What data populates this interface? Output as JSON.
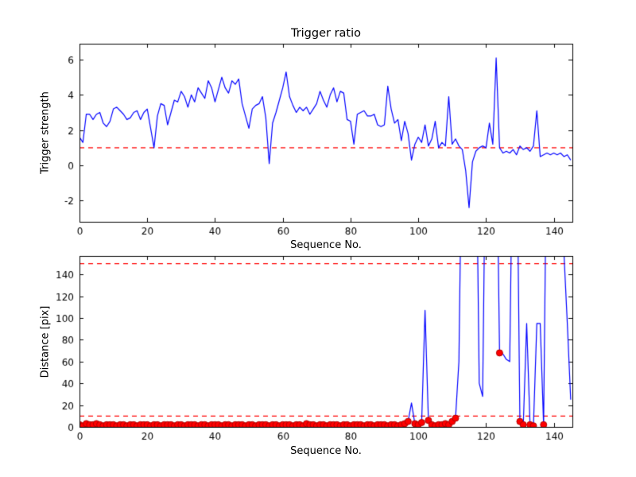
{
  "figure": {
    "background": "#ffffff",
    "line_blue": "#0000ff",
    "dashed_red": "#ff0000"
  },
  "chart_data": [
    {
      "type": "line",
      "title": "Trigger ratio",
      "xlabel": "Sequence No.",
      "ylabel": "Trigger strength",
      "xlim": [
        0,
        145.5
      ],
      "ylim": [
        -3.2,
        6.9
      ],
      "xticks": [
        0,
        20,
        40,
        60,
        80,
        100,
        120,
        140
      ],
      "yticks": [
        -2,
        0,
        2,
        4,
        6
      ],
      "grid": false,
      "legend": null,
      "line_color": "#0000ff",
      "threshold_color": "#ff0000",
      "threshold_lines": [
        1
      ],
      "x_start": 0,
      "x_step": 1,
      "values": [
        1.6,
        1.3,
        2.9,
        2.9,
        2.6,
        2.9,
        3.0,
        2.4,
        2.2,
        2.5,
        3.2,
        3.3,
        3.1,
        2.9,
        2.6,
        2.7,
        3.0,
        3.1,
        2.6,
        3.0,
        3.2,
        2.1,
        1.0,
        2.8,
        3.5,
        3.4,
        2.3,
        3.0,
        3.7,
        3.6,
        4.2,
        3.9,
        3.3,
        4.0,
        3.6,
        4.4,
        4.1,
        3.8,
        4.8,
        4.4,
        3.6,
        4.3,
        5.0,
        4.4,
        4.1,
        4.8,
        4.6,
        4.9,
        3.5,
        2.8,
        2.1,
        3.2,
        3.4,
        3.5,
        3.9,
        2.7,
        0.1,
        2.4,
        3.0,
        3.7,
        4.4,
        5.3,
        3.9,
        3.4,
        3.0,
        3.3,
        3.1,
        3.3,
        2.9,
        3.2,
        3.5,
        4.2,
        3.7,
        3.3,
        4.0,
        4.4,
        3.6,
        4.2,
        4.1,
        2.6,
        2.5,
        1.2,
        2.9,
        3.0,
        3.1,
        2.8,
        2.8,
        2.9,
        2.3,
        2.2,
        2.3,
        4.5,
        3.2,
        2.4,
        2.6,
        1.4,
        2.5,
        1.8,
        0.3,
        1.2,
        1.6,
        1.3,
        2.3,
        1.1,
        1.5,
        2.5,
        1.0,
        1.3,
        1.1,
        3.9,
        1.2,
        1.5,
        1.1,
        0.9,
        -0.3,
        -2.4,
        0.2,
        0.8,
        1.0,
        1.1,
        1.0,
        2.4,
        1.2,
        6.1,
        1.0,
        0.7,
        0.8,
        0.7,
        0.9,
        0.6,
        1.1,
        0.9,
        1.0,
        0.8,
        1.1,
        3.1,
        0.5,
        0.6,
        0.7,
        0.6,
        0.7,
        0.6,
        0.7,
        0.5,
        0.6,
        0.3
      ]
    },
    {
      "type": "line",
      "title": "",
      "xlabel": "Sequence No.",
      "ylabel": "Distance [pix]",
      "xlim": [
        0,
        145.5
      ],
      "ylim": [
        0,
        157
      ],
      "xticks": [
        0,
        20,
        40,
        60,
        80,
        100,
        120,
        140
      ],
      "yticks": [
        0,
        20,
        40,
        60,
        80,
        100,
        120,
        140
      ],
      "grid": false,
      "legend": null,
      "line_color": "#0000ff",
      "threshold_color": "#ff0000",
      "threshold_lines": [
        10,
        150
      ],
      "x_start": 0,
      "x_step": 1,
      "values": [
        2,
        1,
        3,
        2,
        2,
        3,
        2,
        1,
        2,
        2,
        2,
        1,
        2,
        2,
        1,
        2,
        2,
        1,
        2,
        2,
        2,
        1,
        2,
        2,
        1,
        2,
        2,
        2,
        1,
        2,
        2,
        1,
        2,
        2,
        2,
        1,
        2,
        2,
        1,
        2,
        2,
        2,
        1,
        2,
        2,
        1,
        2,
        2,
        2,
        1,
        2,
        2,
        1,
        2,
        2,
        2,
        1,
        2,
        2,
        1,
        2,
        2,
        2,
        1,
        2,
        2,
        1,
        3,
        2,
        2,
        1,
        2,
        2,
        1,
        2,
        2,
        2,
        1,
        2,
        2,
        1,
        2,
        2,
        2,
        1,
        2,
        2,
        1,
        2,
        2,
        2,
        1,
        2,
        2,
        1,
        2,
        3,
        5,
        22,
        3,
        2,
        4,
        107,
        6,
        2,
        1,
        2,
        2,
        3,
        2,
        5,
        8,
        60,
        300,
        300,
        300,
        300,
        300,
        40,
        28,
        300,
        300,
        300,
        300,
        68,
        67,
        62,
        60,
        300,
        300,
        5,
        2,
        95,
        2,
        1,
        95,
        95,
        2,
        300,
        300,
        300,
        300,
        300,
        160,
        95,
        25
      ],
      "markers": {
        "threshold": 10,
        "extra_indices": [
          124
        ],
        "color": "#ff0000",
        "edge_color": "#b00000",
        "size": 4
      }
    }
  ]
}
